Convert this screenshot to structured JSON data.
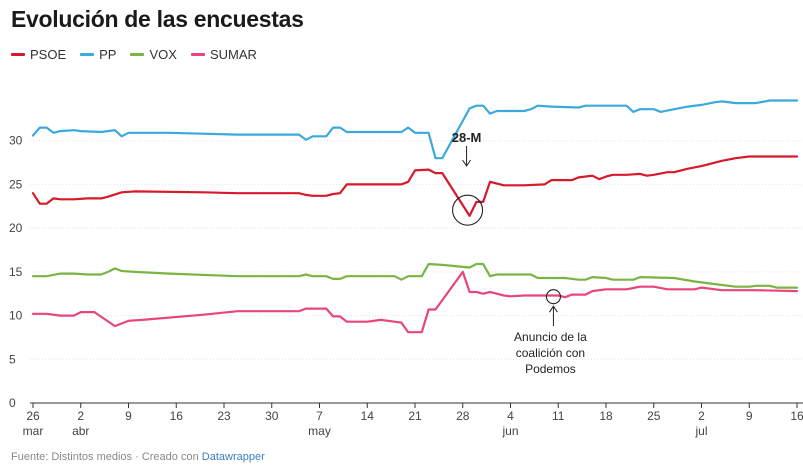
{
  "title": "Evolución de las encuestas",
  "footer": {
    "source_text": "Fuente: Distintos medios · Creado con ",
    "link_text": "Datawrapper"
  },
  "chart_data": {
    "type": "line",
    "title": "Evolución de las encuestas",
    "xlabel": "",
    "ylabel": "",
    "ylim": [
      0,
      35
    ],
    "xlim": [
      "2023-03-26",
      "2023-07-16"
    ],
    "yticks": [
      0,
      5,
      10,
      15,
      20,
      25,
      30
    ],
    "xticks": [
      {
        "date": "2023-03-26",
        "label": "26",
        "sublabel": "mar"
      },
      {
        "date": "2023-04-02",
        "label": "2",
        "sublabel": "abr"
      },
      {
        "date": "2023-04-09",
        "label": "9",
        "sublabel": ""
      },
      {
        "date": "2023-04-16",
        "label": "16",
        "sublabel": ""
      },
      {
        "date": "2023-04-23",
        "label": "23",
        "sublabel": ""
      },
      {
        "date": "2023-04-30",
        "label": "30",
        "sublabel": ""
      },
      {
        "date": "2023-05-07",
        "label": "7",
        "sublabel": "may"
      },
      {
        "date": "2023-05-14",
        "label": "14",
        "sublabel": ""
      },
      {
        "date": "2023-05-21",
        "label": "21",
        "sublabel": ""
      },
      {
        "date": "2023-05-28",
        "label": "28",
        "sublabel": ""
      },
      {
        "date": "2023-06-04",
        "label": "4",
        "sublabel": "jun"
      },
      {
        "date": "2023-06-11",
        "label": "11",
        "sublabel": ""
      },
      {
        "date": "2023-06-18",
        "label": "18",
        "sublabel": ""
      },
      {
        "date": "2023-06-25",
        "label": "25",
        "sublabel": ""
      },
      {
        "date": "2023-07-02",
        "label": "2",
        "sublabel": "jul"
      },
      {
        "date": "2023-07-09",
        "label": "9",
        "sublabel": ""
      },
      {
        "date": "2023-07-16",
        "label": "16",
        "sublabel": ""
      }
    ],
    "grid": true,
    "legend_position": "top-left",
    "series": [
      {
        "name": "PSOE",
        "color": "#d7192b",
        "points": [
          [
            "2023-03-26",
            24.0
          ],
          [
            "2023-03-27",
            22.8
          ],
          [
            "2023-03-28",
            22.8
          ],
          [
            "2023-03-29",
            23.4
          ],
          [
            "2023-03-30",
            23.3
          ],
          [
            "2023-04-01",
            23.3
          ],
          [
            "2023-04-03",
            23.4
          ],
          [
            "2023-04-05",
            23.4
          ],
          [
            "2023-04-06",
            23.6
          ],
          [
            "2023-04-08",
            24.1
          ],
          [
            "2023-04-10",
            24.2
          ],
          [
            "2023-04-20",
            24.1
          ],
          [
            "2023-04-25",
            24.0
          ],
          [
            "2023-05-04",
            24.0
          ],
          [
            "2023-05-05",
            23.8
          ],
          [
            "2023-05-06",
            23.7
          ],
          [
            "2023-05-08",
            23.7
          ],
          [
            "2023-05-09",
            23.9
          ],
          [
            "2023-05-10",
            24.0
          ],
          [
            "2023-05-11",
            25.0
          ],
          [
            "2023-05-15",
            25.0
          ],
          [
            "2023-05-19",
            25.0
          ],
          [
            "2023-05-20",
            25.3
          ],
          [
            "2023-05-21",
            26.6
          ],
          [
            "2023-05-23",
            26.7
          ],
          [
            "2023-05-24",
            26.3
          ],
          [
            "2023-05-25",
            26.3
          ],
          [
            "2023-05-29",
            21.4
          ],
          [
            "2023-05-30",
            23.0
          ],
          [
            "2023-05-31",
            23.0
          ],
          [
            "2023-06-01",
            25.3
          ],
          [
            "2023-06-02",
            25.1
          ],
          [
            "2023-06-03",
            24.9
          ],
          [
            "2023-06-06",
            24.9
          ],
          [
            "2023-06-09",
            25.0
          ],
          [
            "2023-06-10",
            25.5
          ],
          [
            "2023-06-13",
            25.5
          ],
          [
            "2023-06-14",
            25.8
          ],
          [
            "2023-06-16",
            26.0
          ],
          [
            "2023-06-17",
            25.6
          ],
          [
            "2023-06-18",
            25.9
          ],
          [
            "2023-06-19",
            26.1
          ],
          [
            "2023-06-21",
            26.1
          ],
          [
            "2023-06-23",
            26.2
          ],
          [
            "2023-06-24",
            26.0
          ],
          [
            "2023-06-25",
            26.1
          ],
          [
            "2023-06-27",
            26.4
          ],
          [
            "2023-06-28",
            26.4
          ],
          [
            "2023-06-30",
            26.8
          ],
          [
            "2023-07-02",
            27.1
          ],
          [
            "2023-07-03",
            27.3
          ],
          [
            "2023-07-05",
            27.7
          ],
          [
            "2023-07-07",
            28.0
          ],
          [
            "2023-07-09",
            28.2
          ],
          [
            "2023-07-16",
            28.2
          ]
        ]
      },
      {
        "name": "PP",
        "color": "#3ca9dd",
        "points": [
          [
            "2023-03-26",
            30.6
          ],
          [
            "2023-03-27",
            31.5
          ],
          [
            "2023-03-28",
            31.5
          ],
          [
            "2023-03-29",
            30.9
          ],
          [
            "2023-03-30",
            31.1
          ],
          [
            "2023-04-01",
            31.2
          ],
          [
            "2023-04-02",
            31.1
          ],
          [
            "2023-04-05",
            31.0
          ],
          [
            "2023-04-07",
            31.2
          ],
          [
            "2023-04-08",
            30.5
          ],
          [
            "2023-04-09",
            30.9
          ],
          [
            "2023-04-15",
            30.9
          ],
          [
            "2023-04-25",
            30.7
          ],
          [
            "2023-05-04",
            30.7
          ],
          [
            "2023-05-05",
            30.1
          ],
          [
            "2023-05-06",
            30.5
          ],
          [
            "2023-05-08",
            30.5
          ],
          [
            "2023-05-09",
            31.5
          ],
          [
            "2023-05-10",
            31.5
          ],
          [
            "2023-05-11",
            31.0
          ],
          [
            "2023-05-19",
            31.0
          ],
          [
            "2023-05-20",
            31.5
          ],
          [
            "2023-05-21",
            30.9
          ],
          [
            "2023-05-23",
            30.9
          ],
          [
            "2023-05-24",
            28.0
          ],
          [
            "2023-05-25",
            28.0
          ],
          [
            "2023-05-29",
            33.7
          ],
          [
            "2023-05-30",
            34.0
          ],
          [
            "2023-05-31",
            34.0
          ],
          [
            "2023-06-01",
            33.1
          ],
          [
            "2023-06-02",
            33.4
          ],
          [
            "2023-06-06",
            33.4
          ],
          [
            "2023-06-07",
            33.6
          ],
          [
            "2023-06-08",
            34.0
          ],
          [
            "2023-06-10",
            33.9
          ],
          [
            "2023-06-14",
            33.8
          ],
          [
            "2023-06-15",
            34.0
          ],
          [
            "2023-06-21",
            34.0
          ],
          [
            "2023-06-22",
            33.3
          ],
          [
            "2023-06-23",
            33.6
          ],
          [
            "2023-06-25",
            33.6
          ],
          [
            "2023-06-26",
            33.3
          ],
          [
            "2023-06-28",
            33.6
          ],
          [
            "2023-06-30",
            33.9
          ],
          [
            "2023-07-02",
            34.1
          ],
          [
            "2023-07-04",
            34.4
          ],
          [
            "2023-07-05",
            34.5
          ],
          [
            "2023-07-07",
            34.3
          ],
          [
            "2023-07-10",
            34.3
          ],
          [
            "2023-07-12",
            34.6
          ],
          [
            "2023-07-16",
            34.6
          ]
        ]
      },
      {
        "name": "VOX",
        "color": "#7ab442",
        "points": [
          [
            "2023-03-26",
            14.5
          ],
          [
            "2023-03-28",
            14.5
          ],
          [
            "2023-03-30",
            14.8
          ],
          [
            "2023-04-01",
            14.8
          ],
          [
            "2023-04-03",
            14.7
          ],
          [
            "2023-04-05",
            14.7
          ],
          [
            "2023-04-06",
            15.0
          ],
          [
            "2023-04-07",
            15.4
          ],
          [
            "2023-04-08",
            15.1
          ],
          [
            "2023-04-10",
            15.0
          ],
          [
            "2023-04-15",
            14.8
          ],
          [
            "2023-04-25",
            14.5
          ],
          [
            "2023-05-04",
            14.5
          ],
          [
            "2023-05-05",
            14.7
          ],
          [
            "2023-05-06",
            14.5
          ],
          [
            "2023-05-08",
            14.5
          ],
          [
            "2023-05-09",
            14.2
          ],
          [
            "2023-05-10",
            14.2
          ],
          [
            "2023-05-11",
            14.5
          ],
          [
            "2023-05-18",
            14.5
          ],
          [
            "2023-05-19",
            14.1
          ],
          [
            "2023-05-20",
            14.5
          ],
          [
            "2023-05-21",
            14.5
          ],
          [
            "2023-05-22",
            14.5
          ],
          [
            "2023-05-23",
            15.9
          ],
          [
            "2023-05-25",
            15.8
          ],
          [
            "2023-05-29",
            15.5
          ],
          [
            "2023-05-30",
            15.9
          ],
          [
            "2023-05-31",
            15.9
          ],
          [
            "2023-06-01",
            14.5
          ],
          [
            "2023-06-02",
            14.7
          ],
          [
            "2023-06-07",
            14.7
          ],
          [
            "2023-06-08",
            14.3
          ],
          [
            "2023-06-12",
            14.3
          ],
          [
            "2023-06-14",
            14.1
          ],
          [
            "2023-06-15",
            14.1
          ],
          [
            "2023-06-16",
            14.4
          ],
          [
            "2023-06-18",
            14.3
          ],
          [
            "2023-06-19",
            14.1
          ],
          [
            "2023-06-22",
            14.1
          ],
          [
            "2023-06-23",
            14.4
          ],
          [
            "2023-06-28",
            14.3
          ],
          [
            "2023-07-01",
            13.9
          ],
          [
            "2023-07-05",
            13.5
          ],
          [
            "2023-07-07",
            13.3
          ],
          [
            "2023-07-09",
            13.3
          ],
          [
            "2023-07-10",
            13.4
          ],
          [
            "2023-07-12",
            13.4
          ],
          [
            "2023-07-13",
            13.2
          ],
          [
            "2023-07-16",
            13.2
          ]
        ]
      },
      {
        "name": "SUMAR",
        "color": "#e8457e",
        "points": [
          [
            "2023-03-26",
            10.2
          ],
          [
            "2023-03-28",
            10.2
          ],
          [
            "2023-03-30",
            10.0
          ],
          [
            "2023-04-01",
            10.0
          ],
          [
            "2023-04-02",
            10.4
          ],
          [
            "2023-04-04",
            10.4
          ],
          [
            "2023-04-07",
            8.8
          ],
          [
            "2023-04-09",
            9.4
          ],
          [
            "2023-04-11",
            9.5
          ],
          [
            "2023-04-20",
            10.1
          ],
          [
            "2023-04-25",
            10.5
          ],
          [
            "2023-05-04",
            10.5
          ],
          [
            "2023-05-05",
            10.8
          ],
          [
            "2023-05-08",
            10.8
          ],
          [
            "2023-05-09",
            9.9
          ],
          [
            "2023-05-10",
            9.9
          ],
          [
            "2023-05-11",
            9.3
          ],
          [
            "2023-05-14",
            9.3
          ],
          [
            "2023-05-16",
            9.5
          ],
          [
            "2023-05-18",
            9.3
          ],
          [
            "2023-05-19",
            9.2
          ],
          [
            "2023-05-20",
            8.1
          ],
          [
            "2023-05-22",
            8.1
          ],
          [
            "2023-05-23",
            10.7
          ],
          [
            "2023-05-24",
            10.7
          ],
          [
            "2023-05-28",
            15.0
          ],
          [
            "2023-05-29",
            12.7
          ],
          [
            "2023-05-30",
            12.7
          ],
          [
            "2023-05-31",
            12.5
          ],
          [
            "2023-06-01",
            12.7
          ],
          [
            "2023-06-02",
            12.5
          ],
          [
            "2023-06-03",
            12.3
          ],
          [
            "2023-06-04",
            12.2
          ],
          [
            "2023-06-06",
            12.3
          ],
          [
            "2023-06-11",
            12.3
          ],
          [
            "2023-06-12",
            12.1
          ],
          [
            "2023-06-13",
            12.4
          ],
          [
            "2023-06-15",
            12.4
          ],
          [
            "2023-06-16",
            12.8
          ],
          [
            "2023-06-18",
            13.0
          ],
          [
            "2023-06-21",
            13.0
          ],
          [
            "2023-06-23",
            13.3
          ],
          [
            "2023-06-25",
            13.3
          ],
          [
            "2023-06-27",
            13.0
          ],
          [
            "2023-07-01",
            13.0
          ],
          [
            "2023-07-02",
            13.2
          ],
          [
            "2023-07-05",
            12.9
          ],
          [
            "2023-07-10",
            12.9
          ],
          [
            "2023-07-16",
            12.8
          ]
        ]
      }
    ],
    "annotations": [
      {
        "id": "m28",
        "text": "28-M",
        "date": "2023-05-29",
        "value": 22.0,
        "bold": true,
        "position": "above"
      },
      {
        "id": "coalicion",
        "text": "Anuncio de la coalición con Podemos",
        "lines": [
          "Anuncio de la",
          "coalición con",
          "Podemos"
        ],
        "date": "2023-06-10",
        "value": 12.1,
        "bold": false,
        "position": "below"
      }
    ]
  }
}
